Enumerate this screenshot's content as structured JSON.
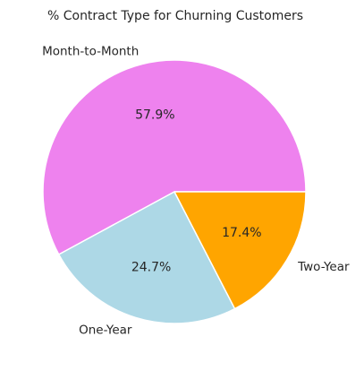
{
  "chart_data": {
    "type": "pie",
    "title": "% Contract Type for Churning Customers",
    "categories": [
      "Month-to-Month",
      "One-Year",
      "Two-Year"
    ],
    "values": [
      57.9,
      24.7,
      17.4
    ],
    "value_labels": [
      "57.9%",
      "24.7%",
      "17.4%"
    ],
    "colors": [
      "#EE82EE",
      "#ADD8E6",
      "#FFA500"
    ],
    "start_angle_deg": 0,
    "direction": "counterclockwise",
    "wedge_edge_color": "#ffffff",
    "legend": "none"
  }
}
